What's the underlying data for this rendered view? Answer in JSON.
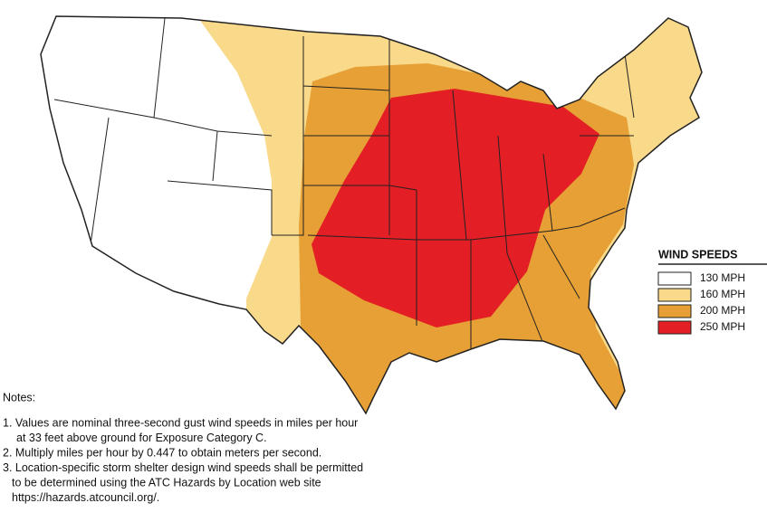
{
  "legend": {
    "title": "WIND SPEEDS",
    "items": [
      {
        "label": "130 MPH",
        "color": "#ffffff"
      },
      {
        "label": "160 MPH",
        "color": "#f9d98a"
      },
      {
        "label": "200 MPH",
        "color": "#e6a035"
      },
      {
        "label": "250 MPH",
        "color": "#e31e24"
      }
    ]
  },
  "notes": {
    "heading": "Notes:",
    "items": [
      [
        "1. Values are nominal three-second gust wind speeds in miles per hour",
        "at 33 feet above ground for Exposure Category C."
      ],
      [
        "2. Multiply miles per hour by 0.447 to obtain meters per second."
      ],
      [
        "3. Location-specific storm shelter design wind speeds shall be permitted",
        "to be determined using the ATC Hazards by Location web site",
        "https://hazards.atcouncil.org/."
      ]
    ]
  }
}
